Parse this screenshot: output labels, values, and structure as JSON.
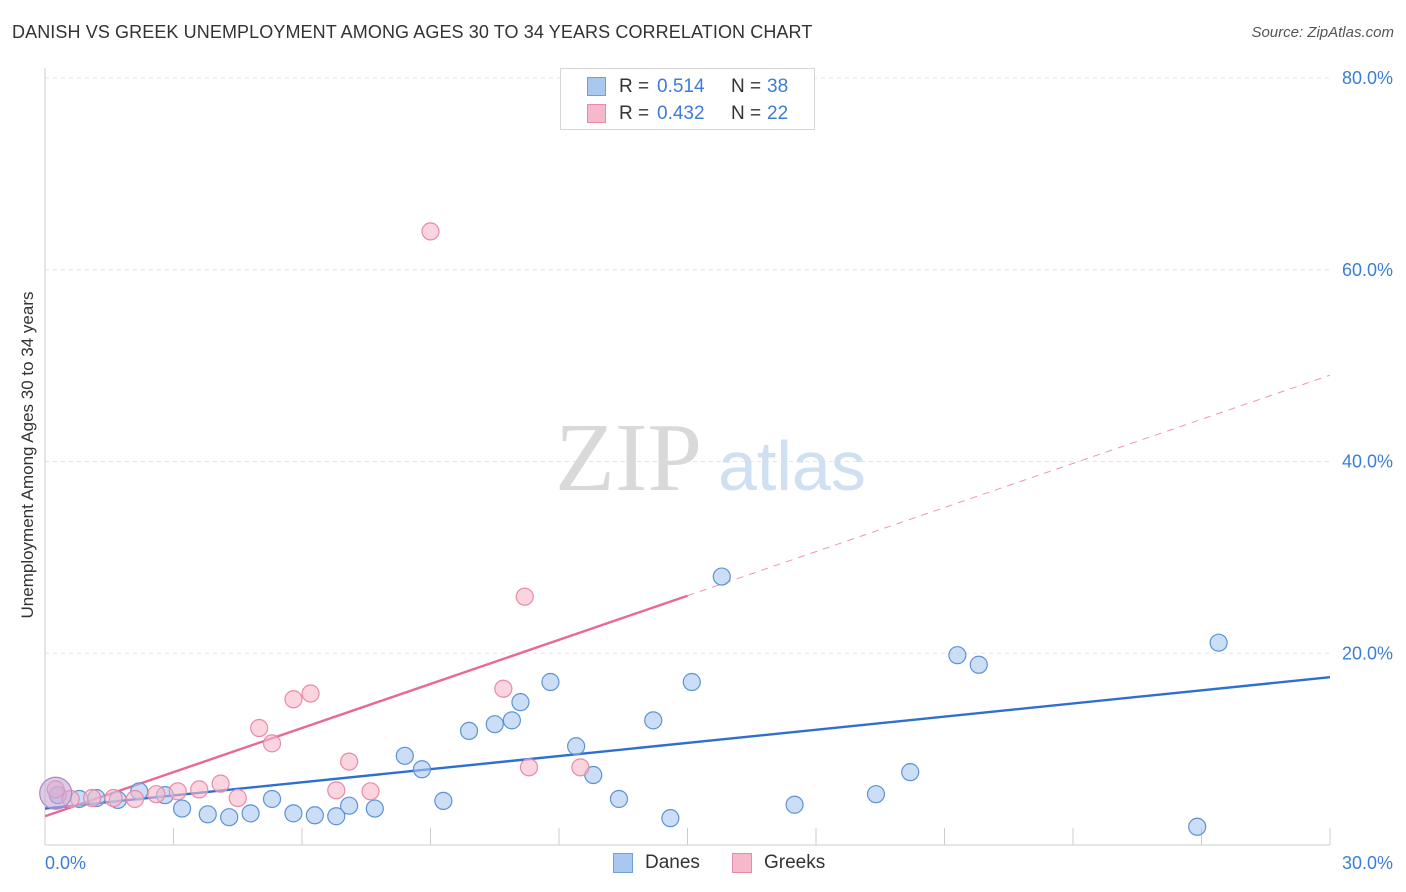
{
  "chart_data": {
    "type": "scatter",
    "title": "DANISH VS GREEK UNEMPLOYMENT AMONG AGES 30 TO 34 YEARS CORRELATION CHART",
    "source": "Source: ZipAtlas.com",
    "ylabel": "Unemployment Among Ages 30 to 34 years",
    "xlabel": "",
    "xlim": [
      0,
      30
    ],
    "ylim": [
      0,
      80
    ],
    "x_tick_labels": [
      "0.0%",
      "30.0%"
    ],
    "y_tick_labels": [
      "20.0%",
      "40.0%",
      "60.0%",
      "80.0%"
    ],
    "y_ticks": [
      20,
      40,
      60,
      80
    ],
    "watermark": "ZIPatlas",
    "legend": [
      {
        "name": "Danes",
        "r_label": "R =",
        "r": "0.514",
        "n_label": "N =",
        "n": "38",
        "color": "#a9c8f0",
        "edge": "#6fa0dc"
      },
      {
        "name": "Greeks",
        "r_label": "R =",
        "r": "0.432",
        "n_label": "N =",
        "n": "22",
        "color": "#f6b9cc",
        "edge": "#e88aa8"
      }
    ],
    "series": [
      {
        "name": "Danes",
        "color": "#a9c8f0",
        "edge": "#5b93d6",
        "line_color": "#2f6fcf",
        "trend": {
          "x0": 0,
          "y0": 3.8,
          "x1": 30,
          "y1": 17.5,
          "solid_to": 30
        },
        "points": [
          [
            0.3,
            5.2
          ],
          [
            0.8,
            4.8
          ],
          [
            1.2,
            4.9
          ],
          [
            1.7,
            4.7
          ],
          [
            2.2,
            5.6
          ],
          [
            2.8,
            5.2
          ],
          [
            3.2,
            3.8
          ],
          [
            3.8,
            3.2
          ],
          [
            4.3,
            2.9
          ],
          [
            4.8,
            3.3
          ],
          [
            5.3,
            4.8
          ],
          [
            5.8,
            3.3
          ],
          [
            6.3,
            3.1
          ],
          [
            6.8,
            3.0
          ],
          [
            7.1,
            4.1
          ],
          [
            7.7,
            3.8
          ],
          [
            8.4,
            9.3
          ],
          [
            8.8,
            7.9
          ],
          [
            9.3,
            4.6
          ],
          [
            9.9,
            11.9
          ],
          [
            10.5,
            12.6
          ],
          [
            10.9,
            13.0
          ],
          [
            11.1,
            14.9
          ],
          [
            11.8,
            17.0
          ],
          [
            12.4,
            10.3
          ],
          [
            12.8,
            7.3
          ],
          [
            13.4,
            4.8
          ],
          [
            14.2,
            13.0
          ],
          [
            14.6,
            2.8
          ],
          [
            15.1,
            17.0
          ],
          [
            15.8,
            28.0
          ],
          [
            17.5,
            4.2
          ],
          [
            19.4,
            5.3
          ],
          [
            20.2,
            7.6
          ],
          [
            21.3,
            19.8
          ],
          [
            21.8,
            18.8
          ],
          [
            26.9,
            1.9
          ],
          [
            27.4,
            21.1
          ]
        ]
      },
      {
        "name": "Greeks",
        "color": "#f6b9cc",
        "edge": "#e88aa8",
        "line_color": "#e8689a",
        "trend": {
          "x0": 0,
          "y0": 3.0,
          "x1": 30,
          "y1": 49.0,
          "solid_to": 15
        },
        "points": [
          [
            0.6,
            4.8
          ],
          [
            1.1,
            4.9
          ],
          [
            1.6,
            4.9
          ],
          [
            2.1,
            4.8
          ],
          [
            2.6,
            5.3
          ],
          [
            3.1,
            5.6
          ],
          [
            3.6,
            5.8
          ],
          [
            4.1,
            6.4
          ],
          [
            4.5,
            4.9
          ],
          [
            5.0,
            12.2
          ],
          [
            5.3,
            10.6
          ],
          [
            5.8,
            15.2
          ],
          [
            6.2,
            15.8
          ],
          [
            6.8,
            5.7
          ],
          [
            7.1,
            8.7
          ],
          [
            7.6,
            5.6
          ],
          [
            9.0,
            64.0
          ],
          [
            10.7,
            16.3
          ],
          [
            11.2,
            25.9
          ],
          [
            11.3,
            8.1
          ],
          [
            12.5,
            8.1
          ],
          [
            0.25,
            5.8
          ]
        ]
      }
    ],
    "big_point": {
      "x": 0.25,
      "y": 5.4
    }
  }
}
